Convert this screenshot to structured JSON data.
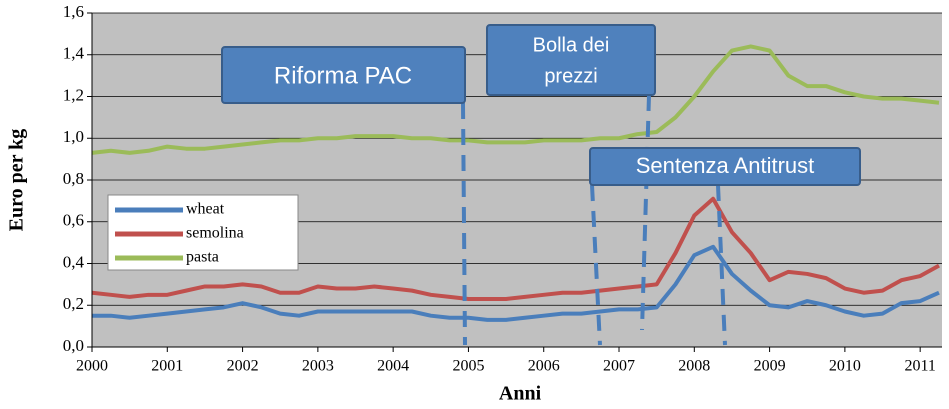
{
  "chart_data": {
    "type": "line",
    "x_label": "Anni",
    "y_label": "Euro per kg",
    "xlim": [
      2000,
      2011.29
    ],
    "xticks": [
      2000,
      2001,
      2002,
      2003,
      2004,
      2005,
      2006,
      2007,
      2008,
      2009,
      2010,
      2011
    ],
    "ylim": [
      0,
      1.6
    ],
    "yticks": [
      {
        "value": 0,
        "label": "0,0"
      },
      {
        "value": 0.2,
        "label": "0,2"
      },
      {
        "value": 0.4,
        "label": "0,4"
      },
      {
        "value": 0.6,
        "label": "0,6"
      },
      {
        "value": 0.8,
        "label": "0,8"
      },
      {
        "value": 1.0,
        "label": "1,0"
      },
      {
        "value": 1.2,
        "label": "1,2"
      },
      {
        "value": 1.4,
        "label": "1,4"
      },
      {
        "value": 1.6,
        "label": "1,6"
      }
    ],
    "grid": true,
    "x": [
      2000,
      2000.25,
      2000.5,
      2000.75,
      2001,
      2001.25,
      2001.5,
      2001.75,
      2002,
      2002.25,
      2002.5,
      2002.75,
      2003,
      2003.25,
      2003.5,
      2003.75,
      2004,
      2004.25,
      2004.5,
      2004.75,
      2005,
      2005.25,
      2005.5,
      2005.75,
      2006,
      2006.25,
      2006.5,
      2006.75,
      2007,
      2007.25,
      2007.5,
      2007.75,
      2008,
      2008.25,
      2008.5,
      2008.75,
      2009,
      2009.25,
      2009.5,
      2009.75,
      2010,
      2010.25,
      2010.5,
      2010.75,
      2011,
      2011.25
    ],
    "series": [
      {
        "name": "wheat",
        "color": "#4a7ebb",
        "values": [
          0.15,
          0.15,
          0.14,
          0.15,
          0.16,
          0.17,
          0.18,
          0.19,
          0.21,
          0.19,
          0.16,
          0.15,
          0.17,
          0.17,
          0.17,
          0.17,
          0.17,
          0.17,
          0.15,
          0.14,
          0.14,
          0.13,
          0.13,
          0.14,
          0.15,
          0.16,
          0.16,
          0.17,
          0.18,
          0.18,
          0.19,
          0.3,
          0.44,
          0.48,
          0.35,
          0.27,
          0.2,
          0.19,
          0.22,
          0.2,
          0.17,
          0.15,
          0.16,
          0.21,
          0.22,
          0.26
        ]
      },
      {
        "name": "semolina",
        "color": "#c0504d",
        "values": [
          0.26,
          0.25,
          0.24,
          0.25,
          0.25,
          0.27,
          0.29,
          0.29,
          0.3,
          0.29,
          0.26,
          0.26,
          0.29,
          0.28,
          0.28,
          0.29,
          0.28,
          0.27,
          0.25,
          0.24,
          0.23,
          0.23,
          0.23,
          0.24,
          0.25,
          0.26,
          0.26,
          0.27,
          0.28,
          0.29,
          0.3,
          0.45,
          0.63,
          0.71,
          0.55,
          0.45,
          0.32,
          0.36,
          0.35,
          0.33,
          0.28,
          0.26,
          0.27,
          0.32,
          0.34,
          0.39
        ]
      },
      {
        "name": "pasta",
        "color": "#9bbb59",
        "values": [
          0.93,
          0.94,
          0.93,
          0.94,
          0.96,
          0.95,
          0.95,
          0.96,
          0.97,
          0.98,
          0.99,
          0.99,
          1.0,
          1.0,
          1.01,
          1.01,
          1.01,
          1.0,
          1.0,
          0.99,
          0.99,
          0.98,
          0.98,
          0.98,
          0.99,
          0.99,
          0.99,
          1.0,
          1.0,
          1.02,
          1.03,
          1.1,
          1.2,
          1.32,
          1.42,
          1.44,
          1.42,
          1.3,
          1.25,
          1.25,
          1.22,
          1.2,
          1.19,
          1.19,
          1.18,
          1.17
        ]
      }
    ],
    "annotations": [
      {
        "text": "Riforma PAC"
      },
      {
        "lines": [
          "Bolla dei",
          "prezzi"
        ]
      },
      {
        "text": "Sentenza Antitrust"
      }
    ]
  }
}
